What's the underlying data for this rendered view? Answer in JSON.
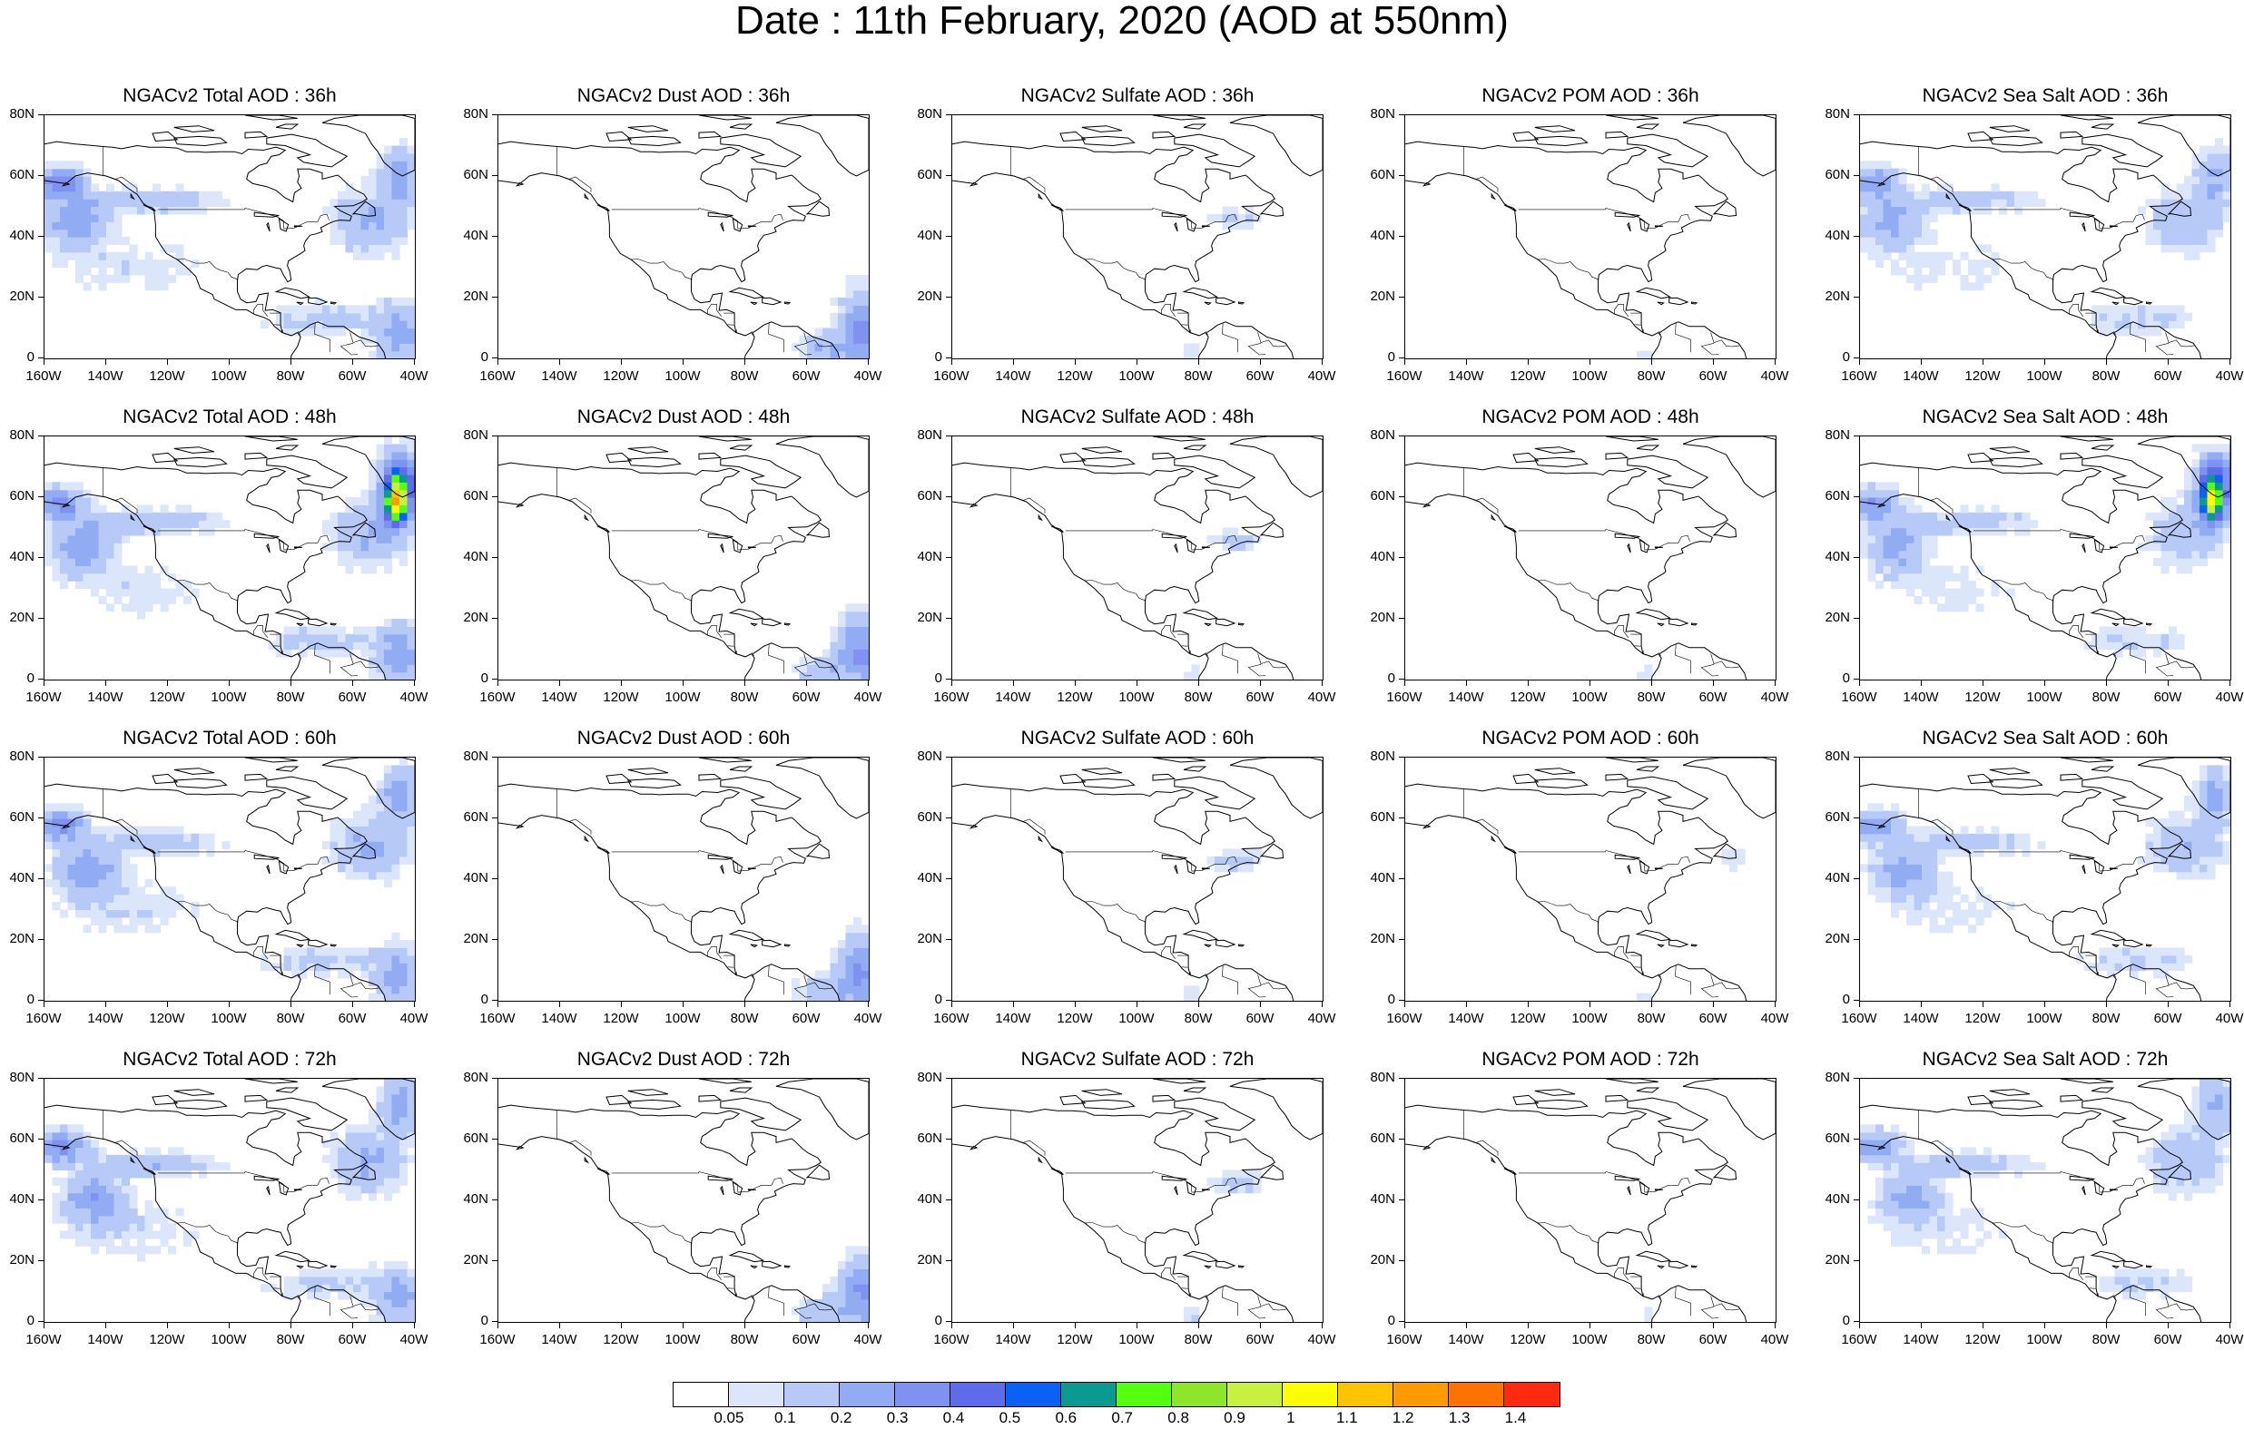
{
  "title": "Date : 11th February, 2020 (AOD at 550nm)",
  "x_ticks": [
    "160W",
    "140W",
    "120W",
    "100W",
    "80W",
    "60W",
    "40W"
  ],
  "y_ticks": [
    "80N",
    "60N",
    "40N",
    "20N",
    "0"
  ],
  "panels": [
    [
      {
        "title": "NGACv2 Total AOD : 36h",
        "field": "total",
        "hour": 36
      },
      {
        "title": "NGACv2 Dust AOD : 36h",
        "field": "dust",
        "hour": 36
      },
      {
        "title": "NGACv2 Sulfate AOD : 36h",
        "field": "sulfate",
        "hour": 36
      },
      {
        "title": "NGACv2 POM AOD : 36h",
        "field": "pom",
        "hour": 36
      },
      {
        "title": "NGACv2 Sea Salt AOD : 36h",
        "field": "seasalt",
        "hour": 36
      }
    ],
    [
      {
        "title": "NGACv2 Total AOD : 48h",
        "field": "total",
        "hour": 48
      },
      {
        "title": "NGACv2 Dust AOD : 48h",
        "field": "dust",
        "hour": 48
      },
      {
        "title": "NGACv2 Sulfate AOD : 48h",
        "field": "sulfate",
        "hour": 48
      },
      {
        "title": "NGACv2 POM AOD : 48h",
        "field": "pom",
        "hour": 48
      },
      {
        "title": "NGACv2 Sea Salt AOD : 48h",
        "field": "seasalt",
        "hour": 48
      }
    ],
    [
      {
        "title": "NGACv2 Total AOD : 60h",
        "field": "total",
        "hour": 60
      },
      {
        "title": "NGACv2 Dust AOD : 60h",
        "field": "dust",
        "hour": 60
      },
      {
        "title": "NGACv2 Sulfate AOD : 60h",
        "field": "sulfate",
        "hour": 60
      },
      {
        "title": "NGACv2 POM AOD : 60h",
        "field": "pom",
        "hour": 60
      },
      {
        "title": "NGACv2 Sea Salt AOD : 60h",
        "field": "seasalt",
        "hour": 60
      }
    ],
    [
      {
        "title": "NGACv2 Total AOD : 72h",
        "field": "total",
        "hour": 72
      },
      {
        "title": "NGACv2 Dust AOD : 72h",
        "field": "dust",
        "hour": 72
      },
      {
        "title": "NGACv2 Sulfate AOD : 72h",
        "field": "sulfate",
        "hour": 72
      },
      {
        "title": "NGACv2 POM AOD : 72h",
        "field": "pom",
        "hour": 72
      },
      {
        "title": "NGACv2 Sea Salt  AOD : 72h",
        "field": "seasalt",
        "hour": 72
      }
    ]
  ],
  "colorbar": {
    "labels": [
      "0.05",
      "0.1",
      "0.2",
      "0.3",
      "0.4",
      "0.5",
      "0.6",
      "0.7",
      "0.8",
      "0.9",
      "1",
      "1.1",
      "1.2",
      "1.3",
      "1.4"
    ],
    "colors": [
      "#ffffff",
      "#dce6fb",
      "#b7c9f7",
      "#92acf3",
      "#7f92f0",
      "#5f6ce9",
      "#0a62f5",
      "#0b9a92",
      "#55ff10",
      "#8ee52a",
      "#c8f040",
      "#ffff00",
      "#ffc400",
      "#ff9a00",
      "#ff7200",
      "#ff2a10"
    ]
  }
}
